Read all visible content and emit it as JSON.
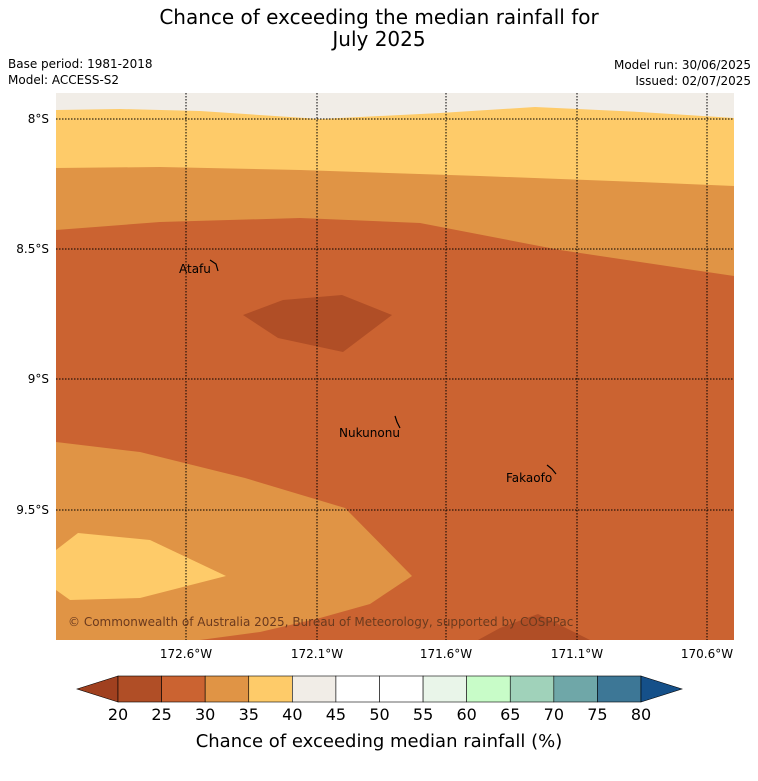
{
  "title": {
    "line1": "Chance of exceeding the median rainfall for",
    "line2": "July 2025"
  },
  "meta": {
    "base_period": "Base period: 1981-2018",
    "model": "Model: ACCESS-S2",
    "model_run": "Model run: 30/06/2025",
    "issued": "Issued: 02/07/2025"
  },
  "map": {
    "lat_labels": [
      "8°S",
      "8.5°S",
      "9°S",
      "9.5°S"
    ],
    "lon_labels": [
      "172.6°W",
      "172.1°W",
      "171.6°W",
      "171.1°W",
      "170.6°W"
    ],
    "places": [
      "Atafu",
      "Nukunonu",
      "Fakaofo"
    ],
    "copyright": "© Commonwealth of Australia 2025, Bureau of Meteorology, supported by COSPPac",
    "category_colors": {
      "20-25": "#b04e26",
      "25-30": "#cb6331",
      "30-35": "#e09445",
      "35-40": "#fecb69",
      "40-45": "#f1ede7"
    }
  },
  "colorbar": {
    "ticks": [
      "20",
      "25",
      "30",
      "35",
      "40",
      "45",
      "50",
      "55",
      "60",
      "65",
      "70",
      "75",
      "80"
    ],
    "label": "Chance of exceeding median rainfall (%)",
    "colors": [
      "#b04e26",
      "#cb6331",
      "#e09445",
      "#fecb69",
      "#f1ede7",
      "#ffffff",
      "#ffffff",
      "#e9f5e9",
      "#c8fcc8",
      "#a0d2ba",
      "#6fa7a8",
      "#3d7796"
    ],
    "low_extend_color": "#a0401f",
    "high_extend_color": "#155089"
  }
}
